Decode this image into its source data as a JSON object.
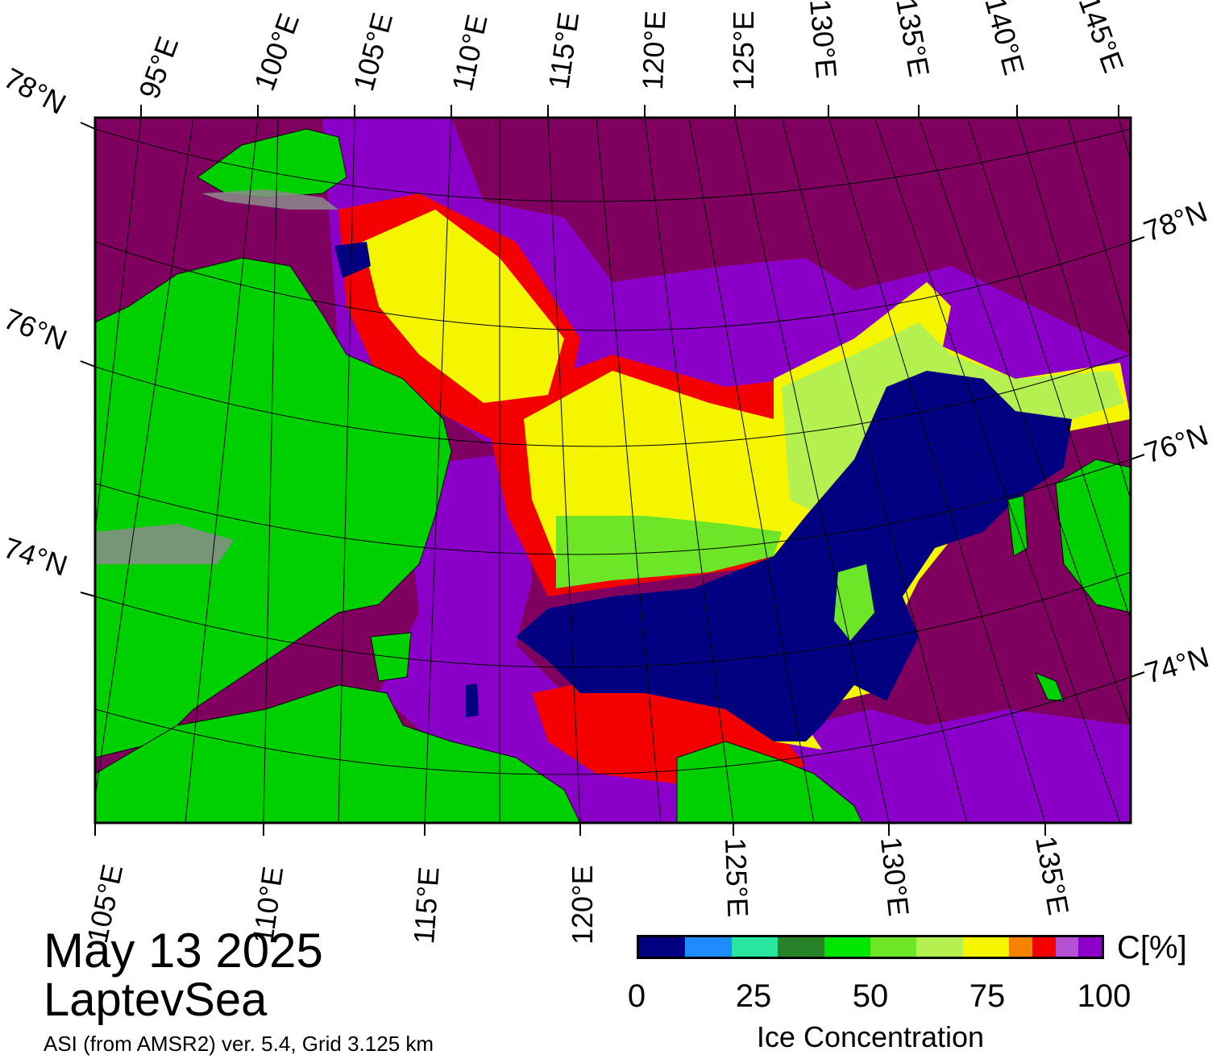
{
  "title": {
    "date": "May 13 2025",
    "region": "LaptevSea",
    "product": "ASI (from AMSR2) ver. 5.4,  Grid 3.125 km"
  },
  "colors": {
    "land": "#00d000",
    "coast_shelf": "#8c8c8c",
    "open_water": "#000080",
    "ice_high": "#800060",
    "ice_very_high": "#8a00c8"
  },
  "map": {
    "top_lon_labels": [
      "95°E",
      "100°E",
      "105°E",
      "110°E",
      "115°E",
      "120°E",
      "125°E",
      "130°E",
      "135°E",
      "140°E",
      "145°E"
    ],
    "bottom_lon_labels": [
      "105°E",
      "110°E",
      "115°E",
      "120°E",
      "125°E",
      "130°E",
      "135°E"
    ],
    "left_lat_labels": [
      "78°N",
      "76°N",
      "74°N"
    ],
    "right_lat_labels": [
      "78°N",
      "76°N",
      "74°N"
    ]
  },
  "legend": {
    "title": "Ice Concentration",
    "unit": "C[%]",
    "ticks": [
      "0",
      "25",
      "50",
      "75",
      "100"
    ],
    "bins": [
      {
        "from": 0,
        "to": 10,
        "color": "#000080"
      },
      {
        "from": 10,
        "to": 20,
        "color": "#1e8cff"
      },
      {
        "from": 20,
        "to": 30,
        "color": "#28e6a0"
      },
      {
        "from": 30,
        "to": 40,
        "color": "#288228"
      },
      {
        "from": 40,
        "to": 50,
        "color": "#00e600"
      },
      {
        "from": 50,
        "to": 60,
        "color": "#6ee628"
      },
      {
        "from": 60,
        "to": 70,
        "color": "#b4f050"
      },
      {
        "from": 70,
        "to": 80,
        "color": "#f5f500"
      },
      {
        "from": 80,
        "to": 85,
        "color": "#f58200"
      },
      {
        "from": 85,
        "to": 90,
        "color": "#f50000"
      },
      {
        "from": 90,
        "to": 95,
        "color": "#b450d2"
      },
      {
        "from": 95,
        "to": 100,
        "color": "#8c00c8"
      }
    ]
  }
}
